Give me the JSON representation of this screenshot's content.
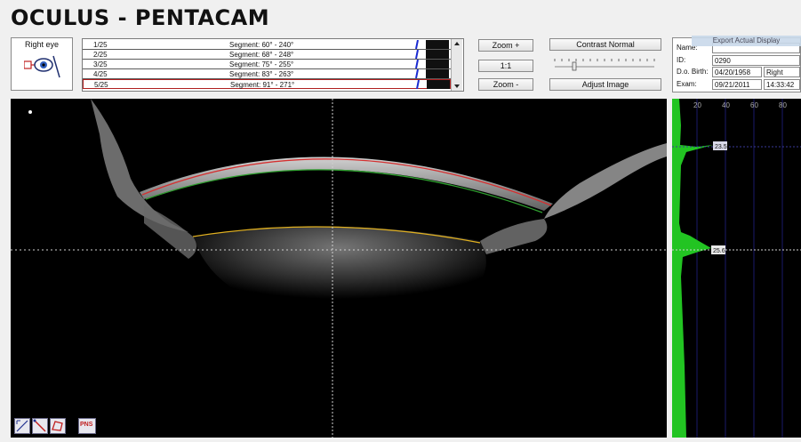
{
  "app": {
    "title": "OCULUS - PENTACAM"
  },
  "eye_selector": {
    "label": "Right eye",
    "icon": "eye-camera-icon"
  },
  "segments": [
    {
      "index": "1/25",
      "segment": "Segment: 60° - 240°"
    },
    {
      "index": "2/25",
      "segment": "Segment: 68° - 248°"
    },
    {
      "index": "3/25",
      "segment": "Segment: 75° - 255°"
    },
    {
      "index": "4/25",
      "segment": "Segment: 83° - 263°"
    },
    {
      "index": "5/25",
      "segment": "Segment: 91° - 271°"
    }
  ],
  "zoom": {
    "zoom_in": "Zoom +",
    "one_to_one": "1:1",
    "zoom_out": "Zoom -"
  },
  "contrast": {
    "normal_label": "Contrast Normal",
    "adjust_label": "Adjust Image"
  },
  "patient": {
    "name_label": "Name:",
    "name_value": "",
    "id_label": "ID:",
    "id_value": "0290",
    "dob_label": "D.o. Birth:",
    "dob_value": "04/20/1958",
    "eye_value": "Right",
    "exam_label": "Exam:",
    "exam_date": "09/21/2011",
    "exam_time": "14:33:42"
  },
  "export": {
    "label": "Export Actual Display"
  },
  "histogram": {
    "axis_ticks": [
      "20",
      "40",
      "60",
      "80"
    ],
    "marker_1": "23.5",
    "marker_2": "25.6"
  },
  "tools": {
    "pns_label": "PNS"
  },
  "colors": {
    "cornea_front": "#d43030",
    "cornea_back": "#2fa02f",
    "lens_front": "#e0b020",
    "histogram_fill": "#22c422"
  }
}
